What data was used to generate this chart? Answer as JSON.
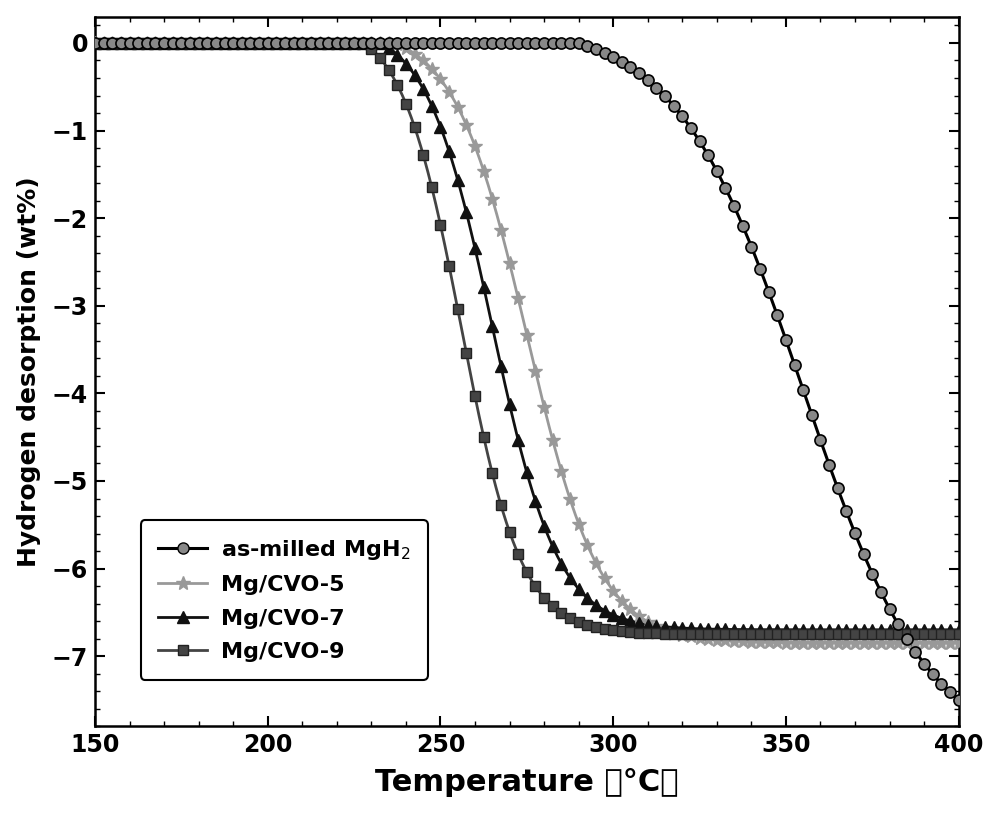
{
  "xlabel": "Temperature （°C）",
  "ylabel": "Hydrogen desorption (wt%)",
  "xlim": [
    150,
    400
  ],
  "ylim": [
    -7.8,
    0.3
  ],
  "yticks": [
    0,
    -1,
    -2,
    -3,
    -4,
    -5,
    -6,
    -7
  ],
  "xticks": [
    150,
    200,
    250,
    300,
    350,
    400
  ],
  "background_color": "#ffffff",
  "series": [
    {
      "label": "as-milled MgH$_2$",
      "color": "#000000",
      "linewidth": 2.2,
      "marker": "o",
      "markersize": 8,
      "markerfacecolor": "#888888",
      "markeredgecolor": "#000000",
      "markeredgewidth": 1.2,
      "zorder": 4,
      "onset": 290,
      "midpoint": 355,
      "steepness": 0.055,
      "final": -7.5,
      "marker_every": 2
    },
    {
      "label": "Mg/CVO-5",
      "color": "#999999",
      "linewidth": 2.0,
      "marker": "*",
      "markersize": 10,
      "markerfacecolor": "#999999",
      "markeredgecolor": "#999999",
      "markeredgewidth": 1.0,
      "zorder": 3,
      "onset": 237,
      "midpoint": 275,
      "steepness": 0.095,
      "final": -6.85,
      "marker_every": 2
    },
    {
      "label": "Mg/CVO-7",
      "color": "#111111",
      "linewidth": 2.0,
      "marker": "^",
      "markersize": 8,
      "markerfacecolor": "#111111",
      "markeredgecolor": "#111111",
      "markeredgewidth": 1.0,
      "zorder": 3,
      "onset": 233,
      "midpoint": 265,
      "steepness": 0.105,
      "final": -6.7,
      "marker_every": 2
    },
    {
      "label": "Mg/CVO-9",
      "color": "#444444",
      "linewidth": 2.0,
      "marker": "s",
      "markersize": 7,
      "markerfacecolor": "#444444",
      "markeredgecolor": "#222222",
      "markeredgewidth": 1.0,
      "zorder": 3,
      "onset": 228,
      "midpoint": 256,
      "steepness": 0.115,
      "final": -6.75,
      "marker_every": 2
    }
  ],
  "xlabel_fontsize": 22,
  "ylabel_fontsize": 18,
  "tick_fontsize": 17,
  "legend_fontsize": 16
}
